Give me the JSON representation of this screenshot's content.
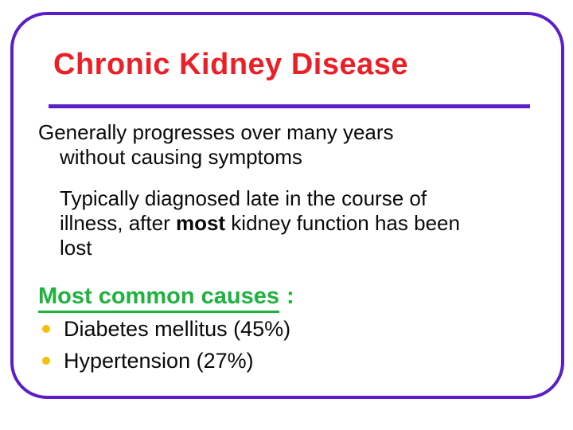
{
  "slide": {
    "title": "Chronic Kidney Disease",
    "paragraph1": {
      "line1": "Generally progresses over many years",
      "line2": "without causing symptoms"
    },
    "paragraph2": {
      "line1": "Typically diagnosed late in the course of",
      "line2_pre": "illness, after ",
      "line2_bold": "most",
      "line2_post": " kidney function has been",
      "line3": "lost"
    },
    "causes_heading": "Most common causes",
    "causes_colon": ":",
    "bullets": [
      "Diabetes mellitus (45%)",
      "Hypertension (27%)"
    ]
  },
  "icons": {
    "bullet": "circle-bullet"
  },
  "colors": {
    "border_purple": "#5b1ec8",
    "title_red": "#ec1f26",
    "heading_green": "#1eb23e",
    "bullet_gold": "#f5bf0a",
    "body_text": "#0a0a0a",
    "background": "#ffffff"
  }
}
